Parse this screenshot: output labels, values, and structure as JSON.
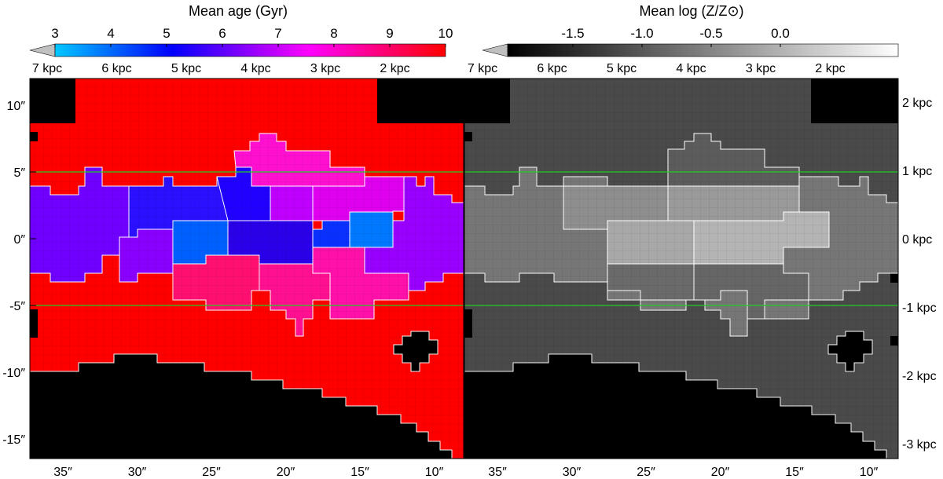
{
  "chart_data": [
    {
      "type": "heatmap",
      "title": "Mean age (Gyr)",
      "colorbar": {
        "ticks": [
          "3",
          "4",
          "5",
          "6",
          "7",
          "8",
          "9",
          "10"
        ],
        "min": 3,
        "max": 10,
        "colors": [
          "#00c8ff",
          "#0000ff",
          "#ff00ff",
          "#ff0000"
        ],
        "under_color": "#c0c0c0"
      },
      "x_ticks": [
        "35″",
        "30″",
        "25″",
        "20″",
        "15″",
        "10″"
      ],
      "y_ticks": [
        "10″",
        "5″",
        "0″",
        "-5″",
        "-10″",
        "-15″"
      ],
      "top_axis": [
        "7 kpc",
        "6 kpc",
        "5 kpc",
        "4 kpc",
        "3 kpc",
        "2 kpc"
      ],
      "reference_lines_y_arcsec": [
        5,
        -5
      ],
      "regions": [
        {
          "region": "upper-center",
          "age_gyr": 7.5
        },
        {
          "region": "left-center",
          "age_gyr": 5.6
        },
        {
          "region": "center",
          "age_gyr": 4.5
        },
        {
          "region": "center-low",
          "age_gyr": 3.4
        },
        {
          "region": "center-right",
          "age_gyr": 3.9
        },
        {
          "region": "right-center",
          "age_gyr": 5.8
        },
        {
          "region": "lower-center",
          "age_gyr": 8.8
        },
        {
          "region": "outer",
          "age_gyr": 10
        }
      ]
    },
    {
      "type": "heatmap",
      "title": "Mean log (Z/Z⊙)",
      "colorbar": {
        "ticks": [
          "-1.5",
          "-1.0",
          "-0.5",
          "0.0"
        ],
        "colors": [
          "#000000",
          "#ffffff"
        ],
        "under_color": "#c0c0c0"
      },
      "x_ticks": [
        "35″",
        "30″",
        "25″",
        "20″",
        "15″",
        "10″"
      ],
      "top_axis": [
        "7 kpc",
        "6 kpc",
        "5 kpc",
        "4 kpc",
        "3 kpc",
        "2 kpc"
      ],
      "right_axis": [
        "2 kpc",
        "1 kpc",
        "0 kpc",
        "-1 kpc",
        "-2 kpc",
        "-3 kpc"
      ],
      "reference_lines_y_arcsec": [
        5,
        -5
      ],
      "regions": [
        {
          "region": "outer",
          "log_z": -1.0
        },
        {
          "region": "middle-band",
          "log_z": -0.8
        },
        {
          "region": "center",
          "log_z": -0.35
        }
      ]
    }
  ]
}
